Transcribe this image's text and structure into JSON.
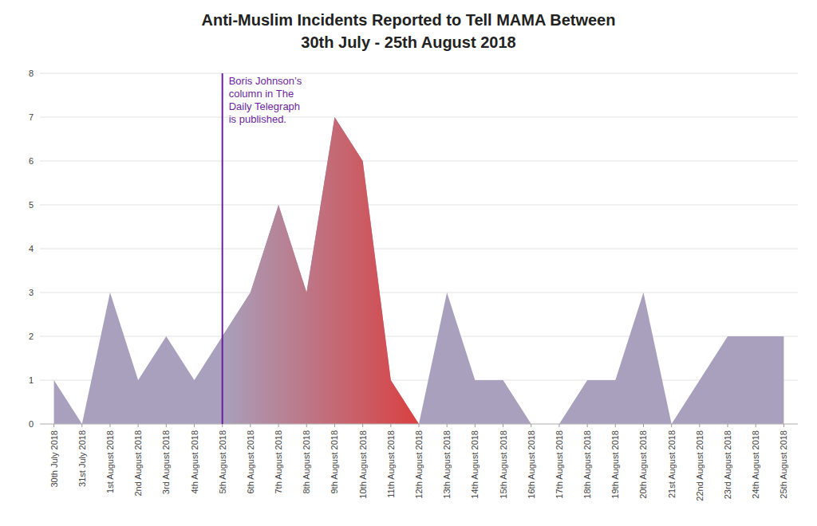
{
  "chart_data": {
    "type": "area",
    "title": "Anti-Muslim Incidents Reported to Tell MAMA Between",
    "subtitle": "30th July - 25th August 2018",
    "categories": [
      "30th July 2018",
      "31st July 2018",
      "1st August 2018",
      "2nd August 2018",
      "3rd August 2018",
      "4th August 2018",
      "5th August 2018",
      "6th August 2018",
      "7th August 2018",
      "8th August 2018",
      "9th August 2018",
      "10th August 2018",
      "11th August 2018",
      "12th August 2018",
      "13th August 2018",
      "14th August 2018",
      "15th August 2018",
      "16th August 2018",
      "17th August 2018",
      "18th August 2018",
      "19th August 2018",
      "20th August 2018",
      "21st August 2018",
      "22nd August 2018",
      "23rd August 2018",
      "24th August 2018",
      "25th August 2018"
    ],
    "values": [
      1,
      0,
      3,
      1,
      2,
      1,
      2,
      3,
      5,
      3,
      7,
      6,
      1,
      0,
      3,
      1,
      1,
      0,
      0,
      1,
      1,
      3,
      0,
      1,
      2,
      2,
      2
    ],
    "color": "#a8a0bc",
    "ylim": [
      0,
      8
    ],
    "yticks": [
      0,
      1,
      2,
      3,
      4,
      5,
      6,
      7,
      8
    ],
    "grid": true,
    "annotations": [
      {
        "type": "line",
        "x": "5th August 2018",
        "color": "#6b1fa0",
        "text": "Boris Johnson’s\ncolumn in The\nDaily Telegraph\nis published."
      },
      {
        "type": "span",
        "x": [
          "5th August 2018",
          "12th August 2018"
        ],
        "color": "#d94040"
      }
    ]
  }
}
